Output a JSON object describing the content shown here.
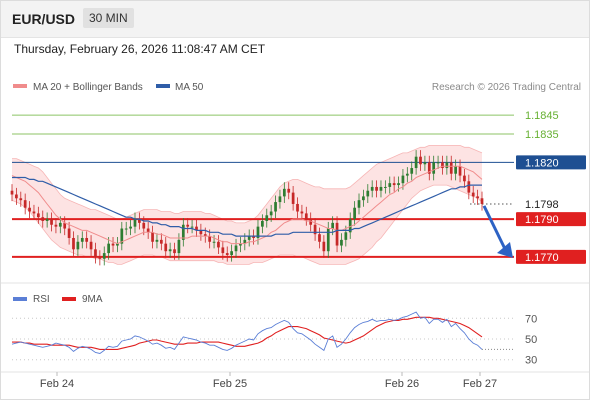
{
  "header": {
    "symbol": "EUR/USD",
    "timeframe": "30 MIN",
    "datetime": "Thursday, February 26, 2026 11:08:47 AM CET"
  },
  "colors": {
    "bollinger_fill": "#fde0e0",
    "ma20": "#f08c8c",
    "ma50": "#2f5da8",
    "resistance": "#66b032",
    "pivot_line": "#1e4f92",
    "support": "#e02020",
    "candle_up": "#2e7d32",
    "candle_down": "#c62828",
    "rsi": "#5b7fd6",
    "rsi_ma": "#e02020",
    "arrow": "#2d62c4"
  },
  "chart_data": [
    {
      "type": "line",
      "title": "EUR/USD 30 MIN",
      "legend": {
        "placement": "top-left",
        "entries": [
          "MA 20 + Bollinger Bands",
          "MA 50"
        ]
      },
      "credit": "Research © 2026 Trading Central",
      "x_ticks": [
        "Feb 24",
        "Feb 25",
        "Feb 26",
        "Feb 27"
      ],
      "ylim": [
        1.1762,
        1.1853
      ],
      "levels": [
        {
          "value": 1.1845,
          "label": "1.1845",
          "kind": "resistance"
        },
        {
          "value": 1.1835,
          "label": "1.1835",
          "kind": "resistance"
        },
        {
          "value": 1.182,
          "label": "1.1820",
          "kind": "pivot"
        },
        {
          "value": 1.1798,
          "label": "1.1798",
          "kind": "last_price"
        },
        {
          "value": 1.179,
          "label": "1.1790",
          "kind": "support"
        },
        {
          "value": 1.177,
          "label": "1.1770",
          "kind": "support"
        }
      ],
      "close": [
        1.1803,
        1.1801,
        1.18,
        1.1796,
        1.1794,
        1.1793,
        1.1791,
        1.1789,
        1.179,
        1.1787,
        1.1786,
        1.1788,
        1.1785,
        1.178,
        1.1774,
        1.1778,
        1.178,
        1.1778,
        1.1774,
        1.177,
        1.1769,
        1.1772,
        1.1777,
        1.1776,
        1.1777,
        1.1785,
        1.1785,
        1.1786,
        1.179,
        1.1788,
        1.1785,
        1.1783,
        1.1778,
        1.1779,
        1.1777,
        1.1773,
        1.1774,
        1.1772,
        1.1779,
        1.1787,
        1.1786,
        1.1786,
        1.1784,
        1.1782,
        1.1781,
        1.1778,
        1.1778,
        1.1775,
        1.1772,
        1.1771,
        1.1773,
        1.1776,
        1.1777,
        1.1779,
        1.1781,
        1.178,
        1.1786,
        1.1789,
        1.1792,
        1.1794,
        1.1799,
        1.1802,
        1.1806,
        1.1804,
        1.1798,
        1.1794,
        1.1793,
        1.179,
        1.1787,
        1.1782,
        1.1778,
        1.1773,
        1.1785,
        1.1788,
        1.1776,
        1.1779,
        1.1783,
        1.179,
        1.1796,
        1.18,
        1.1802,
        1.1805,
        1.1807,
        1.1805,
        1.1807,
        1.1807,
        1.1809,
        1.1808,
        1.1809,
        1.1813,
        1.1814,
        1.1817,
        1.1823,
        1.1819,
        1.182,
        1.1814,
        1.182,
        1.182,
        1.1817,
        1.182,
        1.1814,
        1.1818,
        1.1813,
        1.181,
        1.1804,
        1.1802,
        1.1801,
        1.1798
      ],
      "ma20": [
        1.1813,
        1.1812,
        1.1811,
        1.181,
        1.1808,
        1.1806,
        1.1804,
        1.1801,
        1.1798,
        1.1795,
        1.1792,
        1.179,
        1.1788,
        1.1787,
        1.1786,
        1.1785,
        1.1784,
        1.1784,
        1.1783,
        1.1782,
        1.1781,
        1.178,
        1.1779,
        1.1778,
        1.1777,
        1.1778,
        1.1779,
        1.178,
        1.1781,
        1.1782,
        1.1783,
        1.1783,
        1.1783,
        1.1782,
        1.1782,
        1.1781,
        1.178,
        1.178,
        1.178,
        1.178,
        1.178,
        1.1781,
        1.1781,
        1.1781,
        1.1781,
        1.1781,
        1.178,
        1.1779,
        1.1778,
        1.1778,
        1.1777,
        1.1777,
        1.1777,
        1.1777,
        1.1778,
        1.1778,
        1.1779,
        1.178,
        1.1781,
        1.1783,
        1.1784,
        1.1786,
        1.1788,
        1.1789,
        1.179,
        1.179,
        1.179,
        1.1789,
        1.1789,
        1.1788,
        1.1787,
        1.1786,
        1.1785,
        1.1785,
        1.1784,
        1.1784,
        1.1785,
        1.1786,
        1.1787,
        1.1789,
        1.1791,
        1.1793,
        1.1795,
        1.1797,
        1.1799,
        1.1801,
        1.1803,
        1.1804,
        1.1806,
        1.1807,
        1.1809,
        1.181,
        1.1812,
        1.1813,
        1.1814,
        1.1815,
        1.1816,
        1.1817,
        1.1818,
        1.1818,
        1.1818,
        1.1818,
        1.1818,
        1.1817,
        1.1816,
        1.1815,
        1.1813,
        1.1811
      ],
      "bb_upper": [
        1.1822,
        1.1822,
        1.1821,
        1.182,
        1.1819,
        1.1818,
        1.1817,
        1.1815,
        1.1812,
        1.1809,
        1.1806,
        1.1803,
        1.1801,
        1.18,
        1.1799,
        1.1798,
        1.1797,
        1.1796,
        1.1795,
        1.1795,
        1.1794,
        1.1793,
        1.1792,
        1.1791,
        1.179,
        1.179,
        1.1791,
        1.1792,
        1.1793,
        1.1794,
        1.1795,
        1.1795,
        1.1795,
        1.1795,
        1.1794,
        1.1794,
        1.1794,
        1.1793,
        1.1793,
        1.1794,
        1.1794,
        1.1794,
        1.1794,
        1.1794,
        1.1793,
        1.1793,
        1.1792,
        1.1791,
        1.179,
        1.1789,
        1.1789,
        1.1788,
        1.1788,
        1.1788,
        1.1789,
        1.179,
        1.1792,
        1.1795,
        1.1798,
        1.1801,
        1.1804,
        1.1807,
        1.1809,
        1.181,
        1.1811,
        1.1811,
        1.181,
        1.1809,
        1.1808,
        1.1807,
        1.1807,
        1.1806,
        1.1806,
        1.1806,
        1.1806,
        1.1806,
        1.1806,
        1.1807,
        1.1809,
        1.1811,
        1.1813,
        1.1815,
        1.1817,
        1.1819,
        1.182,
        1.1821,
        1.1822,
        1.1823,
        1.1824,
        1.1825,
        1.1825,
        1.1826,
        1.1827,
        1.1828,
        1.1828,
        1.1829,
        1.1829,
        1.1829,
        1.1829,
        1.1829,
        1.1829,
        1.1829,
        1.1829,
        1.1828,
        1.1828,
        1.1827,
        1.1826,
        1.1825
      ],
      "bb_lower": [
        1.18,
        1.1799,
        1.1798,
        1.1796,
        1.1794,
        1.1791,
        1.1788,
        1.1785,
        1.1782,
        1.1779,
        1.1777,
        1.1775,
        1.1774,
        1.1773,
        1.1772,
        1.1771,
        1.1771,
        1.177,
        1.177,
        1.1769,
        1.1769,
        1.1768,
        1.1767,
        1.1767,
        1.1766,
        1.1766,
        1.1767,
        1.1768,
        1.1769,
        1.177,
        1.1771,
        1.1771,
        1.1771,
        1.177,
        1.177,
        1.1769,
        1.1768,
        1.1768,
        1.1768,
        1.1768,
        1.1768,
        1.1768,
        1.1768,
        1.1768,
        1.1768,
        1.1768,
        1.1768,
        1.1767,
        1.1767,
        1.1766,
        1.1766,
        1.1766,
        1.1766,
        1.1766,
        1.1766,
        1.1767,
        1.1767,
        1.1767,
        1.1768,
        1.1769,
        1.177,
        1.1771,
        1.1771,
        1.1771,
        1.1771,
        1.177,
        1.177,
        1.1769,
        1.1768,
        1.1767,
        1.1766,
        1.1766,
        1.1766,
        1.1766,
        1.1766,
        1.1766,
        1.1766,
        1.1767,
        1.1768,
        1.1769,
        1.1771,
        1.1773,
        1.1775,
        1.1778,
        1.178,
        1.1783,
        1.1786,
        1.1789,
        1.1792,
        1.1795,
        1.1798,
        1.1801,
        1.1803,
        1.1805,
        1.1806,
        1.1807,
        1.1808,
        1.1808,
        1.1808,
        1.1808,
        1.1807,
        1.1806,
        1.1805,
        1.1804,
        1.1803,
        1.1802,
        1.1801,
        1.1799
      ],
      "ma50": [
        1.1812,
        1.1812,
        1.1812,
        1.1812,
        1.1811,
        1.1811,
        1.181,
        1.181,
        1.1809,
        1.1808,
        1.1807,
        1.1806,
        1.1805,
        1.1804,
        1.1803,
        1.1802,
        1.1801,
        1.18,
        1.1799,
        1.1798,
        1.1797,
        1.1796,
        1.1795,
        1.1794,
        1.1793,
        1.1792,
        1.1791,
        1.1791,
        1.179,
        1.179,
        1.1789,
        1.1789,
        1.1788,
        1.1788,
        1.1787,
        1.1787,
        1.1786,
        1.1786,
        1.1786,
        1.1785,
        1.1785,
        1.1785,
        1.1784,
        1.1784,
        1.1784,
        1.1783,
        1.1783,
        1.1783,
        1.1782,
        1.1782,
        1.1782,
        1.1781,
        1.1781,
        1.1781,
        1.1781,
        1.1781,
        1.1781,
        1.1781,
        1.1781,
        1.1781,
        1.1782,
        1.1782,
        1.1782,
        1.1782,
        1.1783,
        1.1783,
        1.1783,
        1.1783,
        1.1783,
        1.1783,
        1.1783,
        1.1783,
        1.1783,
        1.1783,
        1.1784,
        1.1784,
        1.1784,
        1.1784,
        1.1785,
        1.1785,
        1.1786,
        1.1787,
        1.1788,
        1.1789,
        1.179,
        1.1791,
        1.1792,
        1.1793,
        1.1794,
        1.1795,
        1.1796,
        1.1797,
        1.1798,
        1.1799,
        1.18,
        1.1801,
        1.1802,
        1.1803,
        1.1804,
        1.1805,
        1.1806,
        1.1806,
        1.1807,
        1.1807,
        1.1808,
        1.1808,
        1.1808,
        1.1808
      ]
    },
    {
      "type": "line",
      "legend": {
        "placement": "top-left",
        "entries": [
          "RSI",
          "9MA"
        ]
      },
      "ylim": [
        22,
        78
      ],
      "y_ticks": [
        30,
        50,
        70
      ],
      "grid": "dotted",
      "rsi": [
        45,
        46,
        47,
        46,
        45,
        44,
        43,
        42,
        43,
        44,
        46,
        45,
        44,
        42,
        38,
        41,
        43,
        42,
        40,
        37,
        36,
        39,
        43,
        42,
        43,
        48,
        49,
        50,
        53,
        52,
        50,
        48,
        45,
        46,
        44,
        41,
        42,
        40,
        46,
        52,
        51,
        50,
        49,
        47,
        46,
        44,
        44,
        42,
        40,
        39,
        41,
        44,
        46,
        48,
        50,
        49,
        55,
        58,
        60,
        61,
        64,
        66,
        68,
        66,
        60,
        56,
        55,
        52,
        49,
        45,
        42,
        39,
        50,
        53,
        42,
        45,
        50,
        56,
        61,
        64,
        66,
        67,
        69,
        67,
        68,
        68,
        69,
        68,
        69,
        71,
        72,
        74,
        76,
        70,
        71,
        65,
        69,
        69,
        66,
        69,
        62,
        65,
        60,
        56,
        50,
        46,
        44,
        40
      ],
      "ma9": [
        47,
        47,
        47,
        46,
        46,
        45,
        45,
        45,
        45,
        44,
        44,
        44,
        44,
        44,
        43,
        42,
        42,
        42,
        42,
        41,
        40,
        40,
        40,
        40,
        40,
        41,
        42,
        43,
        44,
        46,
        47,
        48,
        49,
        49,
        48,
        47,
        46,
        45,
        45,
        45,
        46,
        46,
        46,
        47,
        47,
        47,
        47,
        47,
        46,
        45,
        44,
        43,
        43,
        43,
        44,
        45,
        46,
        48,
        51,
        53,
        56,
        58,
        60,
        62,
        62,
        62,
        61,
        60,
        58,
        56,
        54,
        51,
        50,
        49,
        48,
        47,
        46,
        47,
        49,
        51,
        53,
        56,
        59,
        62,
        64,
        66,
        67,
        68,
        68,
        69,
        69,
        70,
        71,
        71,
        71,
        71,
        70,
        70,
        69,
        68,
        67,
        66,
        65,
        63,
        61,
        58,
        55,
        52
      ]
    }
  ]
}
